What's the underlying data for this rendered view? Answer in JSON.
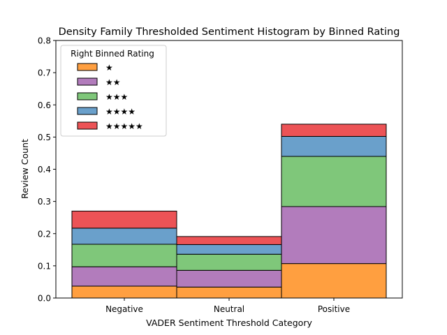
{
  "chart_data": {
    "type": "bar",
    "stacked": true,
    "title": "Density Family Thresholded Sentiment Histogram by Binned Rating",
    "xlabel": "VADER Sentiment Threshold Category",
    "ylabel": "Review Count",
    "categories": [
      "Negative",
      "Neutral",
      "Positive"
    ],
    "ylim": [
      0,
      0.8
    ],
    "yticks": [
      "0.0",
      "0.1",
      "0.2",
      "0.3",
      "0.4",
      "0.5",
      "0.6",
      "0.7",
      "0.8"
    ],
    "legend": {
      "title": "Right Binned Rating",
      "position": "top-left"
    },
    "series": [
      {
        "name": "★",
        "color": "#ff9f40",
        "values": [
          0.037,
          0.034,
          0.107
        ]
      },
      {
        "name": "★★",
        "color": "#b27cbc",
        "values": [
          0.06,
          0.052,
          0.177
        ]
      },
      {
        "name": "★★★",
        "color": "#7fc77a",
        "values": [
          0.07,
          0.05,
          0.156
        ]
      },
      {
        "name": "★★★★",
        "color": "#6aa0cb",
        "values": [
          0.05,
          0.03,
          0.062
        ]
      },
      {
        "name": "★★★★★",
        "color": "#ec5356",
        "values": [
          0.053,
          0.025,
          0.038
        ]
      }
    ]
  }
}
